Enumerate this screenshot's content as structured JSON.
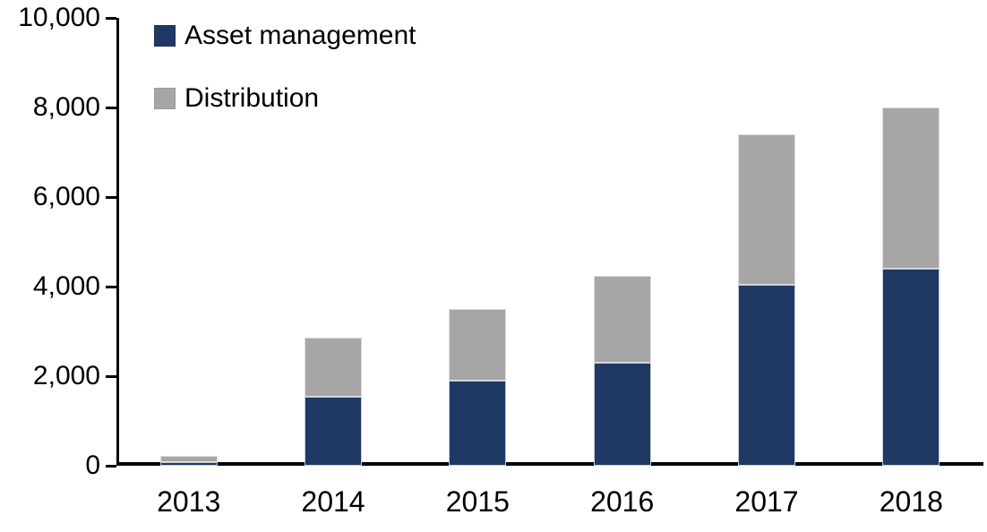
{
  "chart_data": {
    "type": "bar",
    "stacked": true,
    "title": "",
    "xlabel": "",
    "ylabel": "",
    "categories": [
      "2013",
      "2014",
      "2015",
      "2016",
      "2017",
      "2018"
    ],
    "series": [
      {
        "name": "Asset management",
        "color": "#1F3864",
        "values": [
          80,
          1550,
          1900,
          2300,
          4050,
          4400
        ]
      },
      {
        "name": "Distribution",
        "color": "#A6A6A6",
        "values": [
          140,
          1310,
          1600,
          1950,
          3350,
          3600
        ]
      }
    ],
    "ylim": [
      0,
      10000
    ],
    "y_ticks": [
      0,
      2000,
      4000,
      6000,
      8000,
      10000
    ],
    "y_tick_labels": [
      "0",
      "2,000",
      "4,000",
      "6,000",
      "8,000",
      "10,000"
    ],
    "grid": false,
    "legend_position": "top-left-inside",
    "axis_color": "#000000"
  },
  "layout_hints": {
    "bar_totals": [
      220,
      2860,
      3500,
      4250,
      7400,
      8000
    ]
  }
}
